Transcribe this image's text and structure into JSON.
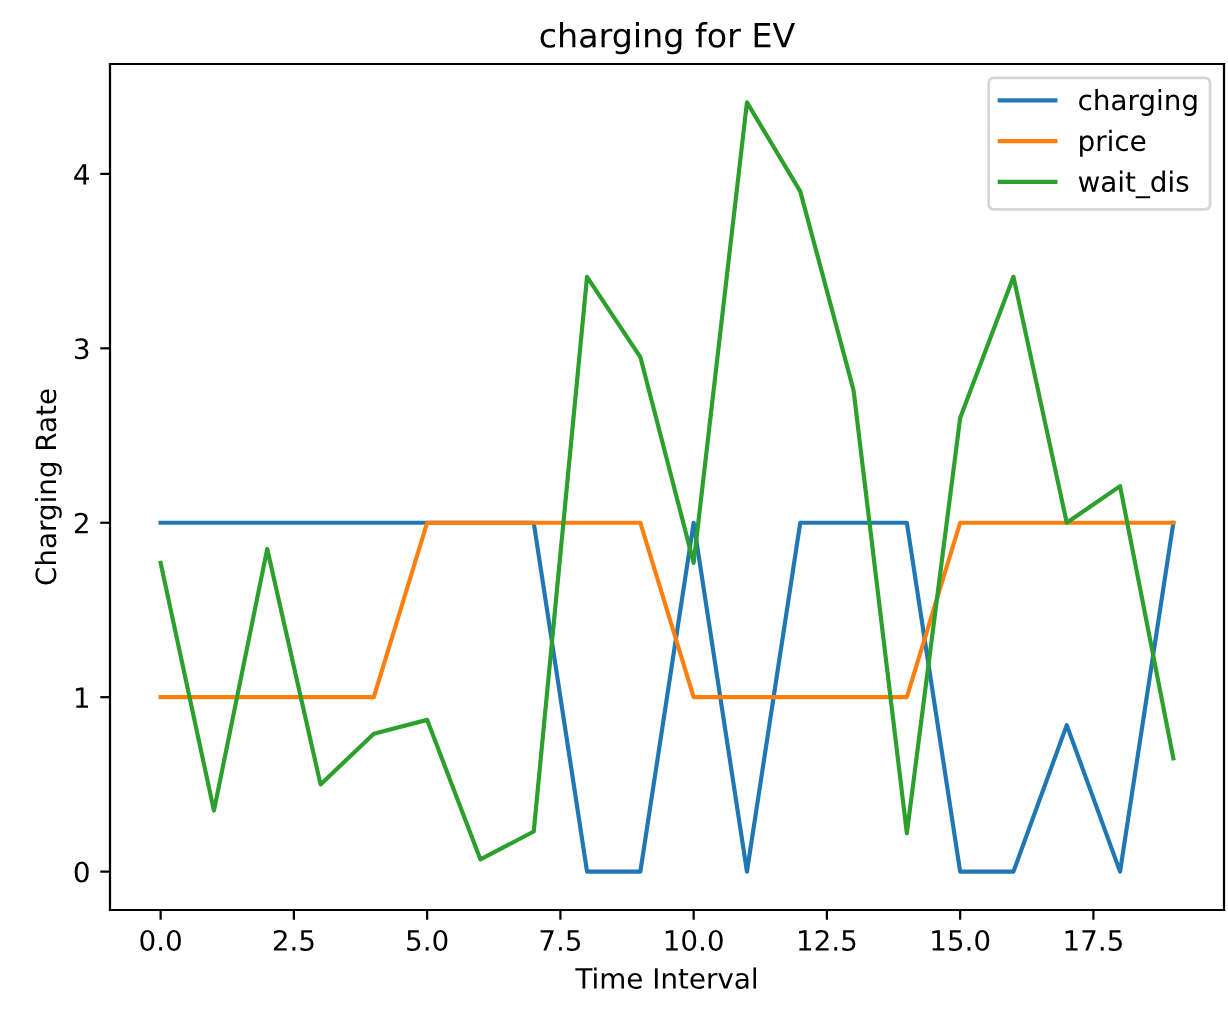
{
  "chart_data": {
    "type": "line",
    "title": "charging for EV",
    "xlabel": "Time Interval",
    "ylabel": "Charging Rate",
    "x": [
      0,
      1,
      2,
      3,
      4,
      5,
      6,
      7,
      8,
      9,
      10,
      11,
      12,
      13,
      14,
      15,
      16,
      17,
      18,
      19
    ],
    "series": [
      {
        "name": "charging",
        "color": "#1f77b4",
        "values": [
          2,
          2,
          2,
          2,
          2,
          2,
          2,
          2,
          0,
          0,
          2,
          0,
          2,
          2,
          2,
          0,
          0,
          0.84,
          0,
          2
        ]
      },
      {
        "name": "price",
        "color": "#ff7f0e",
        "values": [
          1,
          1,
          1,
          1,
          1,
          2,
          2,
          2,
          2,
          2,
          1,
          1,
          1,
          1,
          1,
          2,
          2,
          2,
          2,
          2
        ]
      },
      {
        "name": "wait_dis",
        "color": "#2ca02c",
        "values": [
          1.77,
          0.35,
          1.85,
          0.5,
          0.79,
          0.87,
          0.07,
          0.23,
          3.41,
          2.95,
          1.77,
          4.41,
          3.9,
          2.76,
          0.22,
          2.6,
          3.41,
          2.0,
          2.21,
          0.65
        ]
      }
    ],
    "xlim": [
      -0.95,
      19.95
    ],
    "ylim": [
      -0.22,
      4.63
    ],
    "xticks": [
      {
        "value": 0,
        "label": "0.0"
      },
      {
        "value": 2.5,
        "label": "2.5"
      },
      {
        "value": 5,
        "label": "5.0"
      },
      {
        "value": 7.5,
        "label": "7.5"
      },
      {
        "value": 10,
        "label": "10.0"
      },
      {
        "value": 12.5,
        "label": "12.5"
      },
      {
        "value": 15,
        "label": "15.0"
      },
      {
        "value": 17.5,
        "label": "17.5"
      }
    ],
    "yticks": [
      0,
      1,
      2,
      3,
      4
    ],
    "legend": "top right",
    "grid": false
  }
}
